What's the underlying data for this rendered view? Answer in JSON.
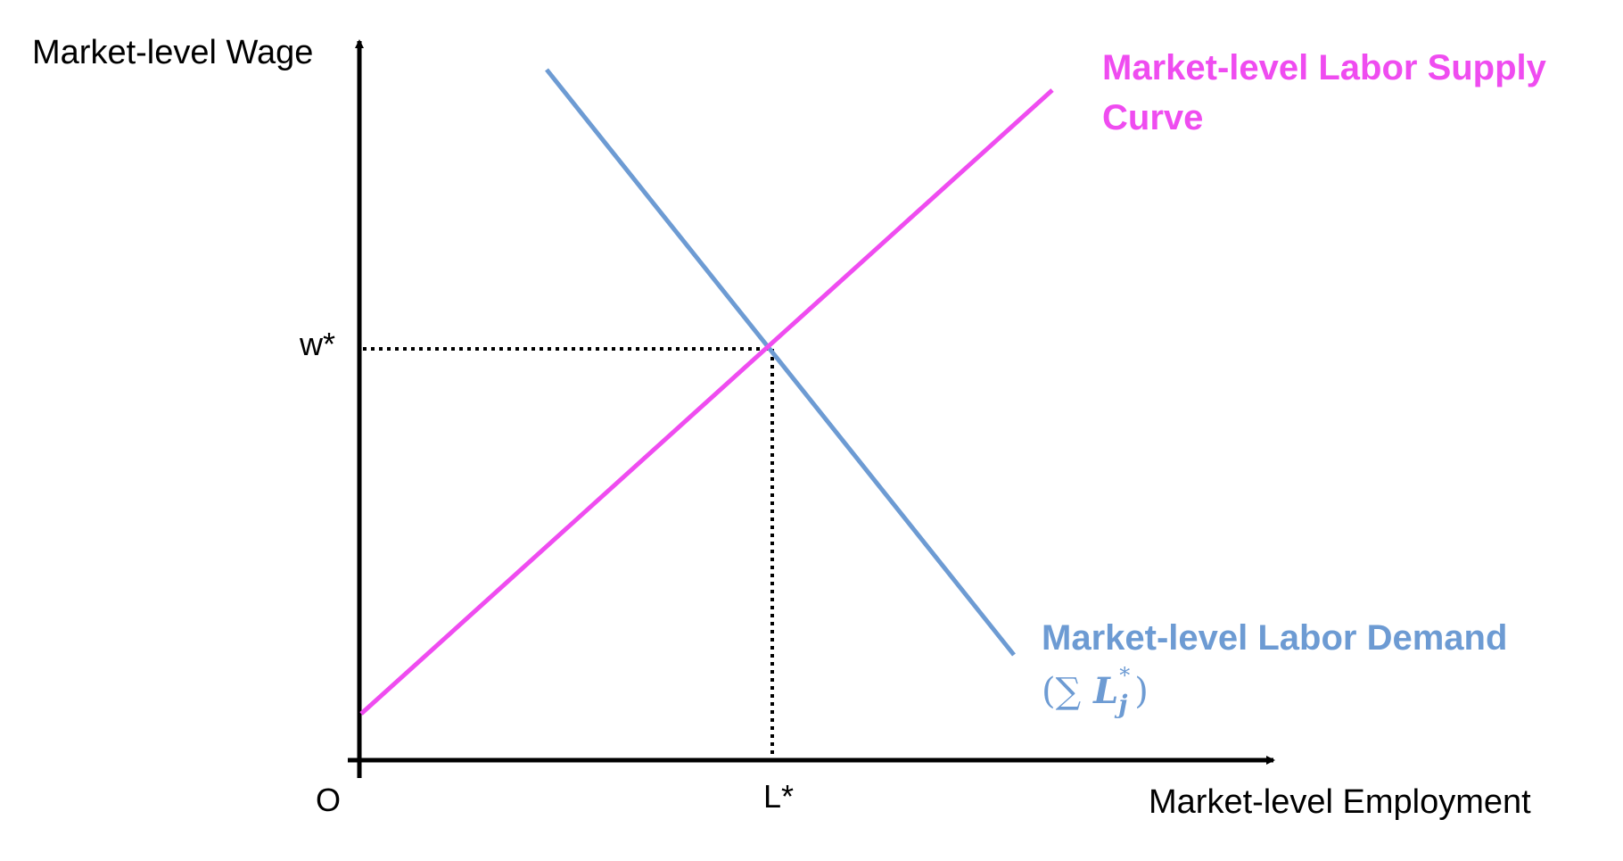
{
  "axes": {
    "y_title": "Market-level Wage",
    "x_title": "Market-level Employment",
    "origin_label": "O"
  },
  "equilibrium": {
    "wage_label": "w*",
    "employment_label": "L*"
  },
  "supply_curve": {
    "label": "Market-level Labor Supply Curve",
    "color": "#ef4cf0"
  },
  "demand_curve": {
    "label": "Market-level Labor Demand",
    "formula_open": "(",
    "formula_sum": "∑",
    "formula_var": "L",
    "formula_sup": "*",
    "formula_sub": "j",
    "formula_close": ")",
    "color": "#6d9bd3"
  },
  "colors": {
    "axis": "#000000",
    "guide": "#000000"
  }
}
